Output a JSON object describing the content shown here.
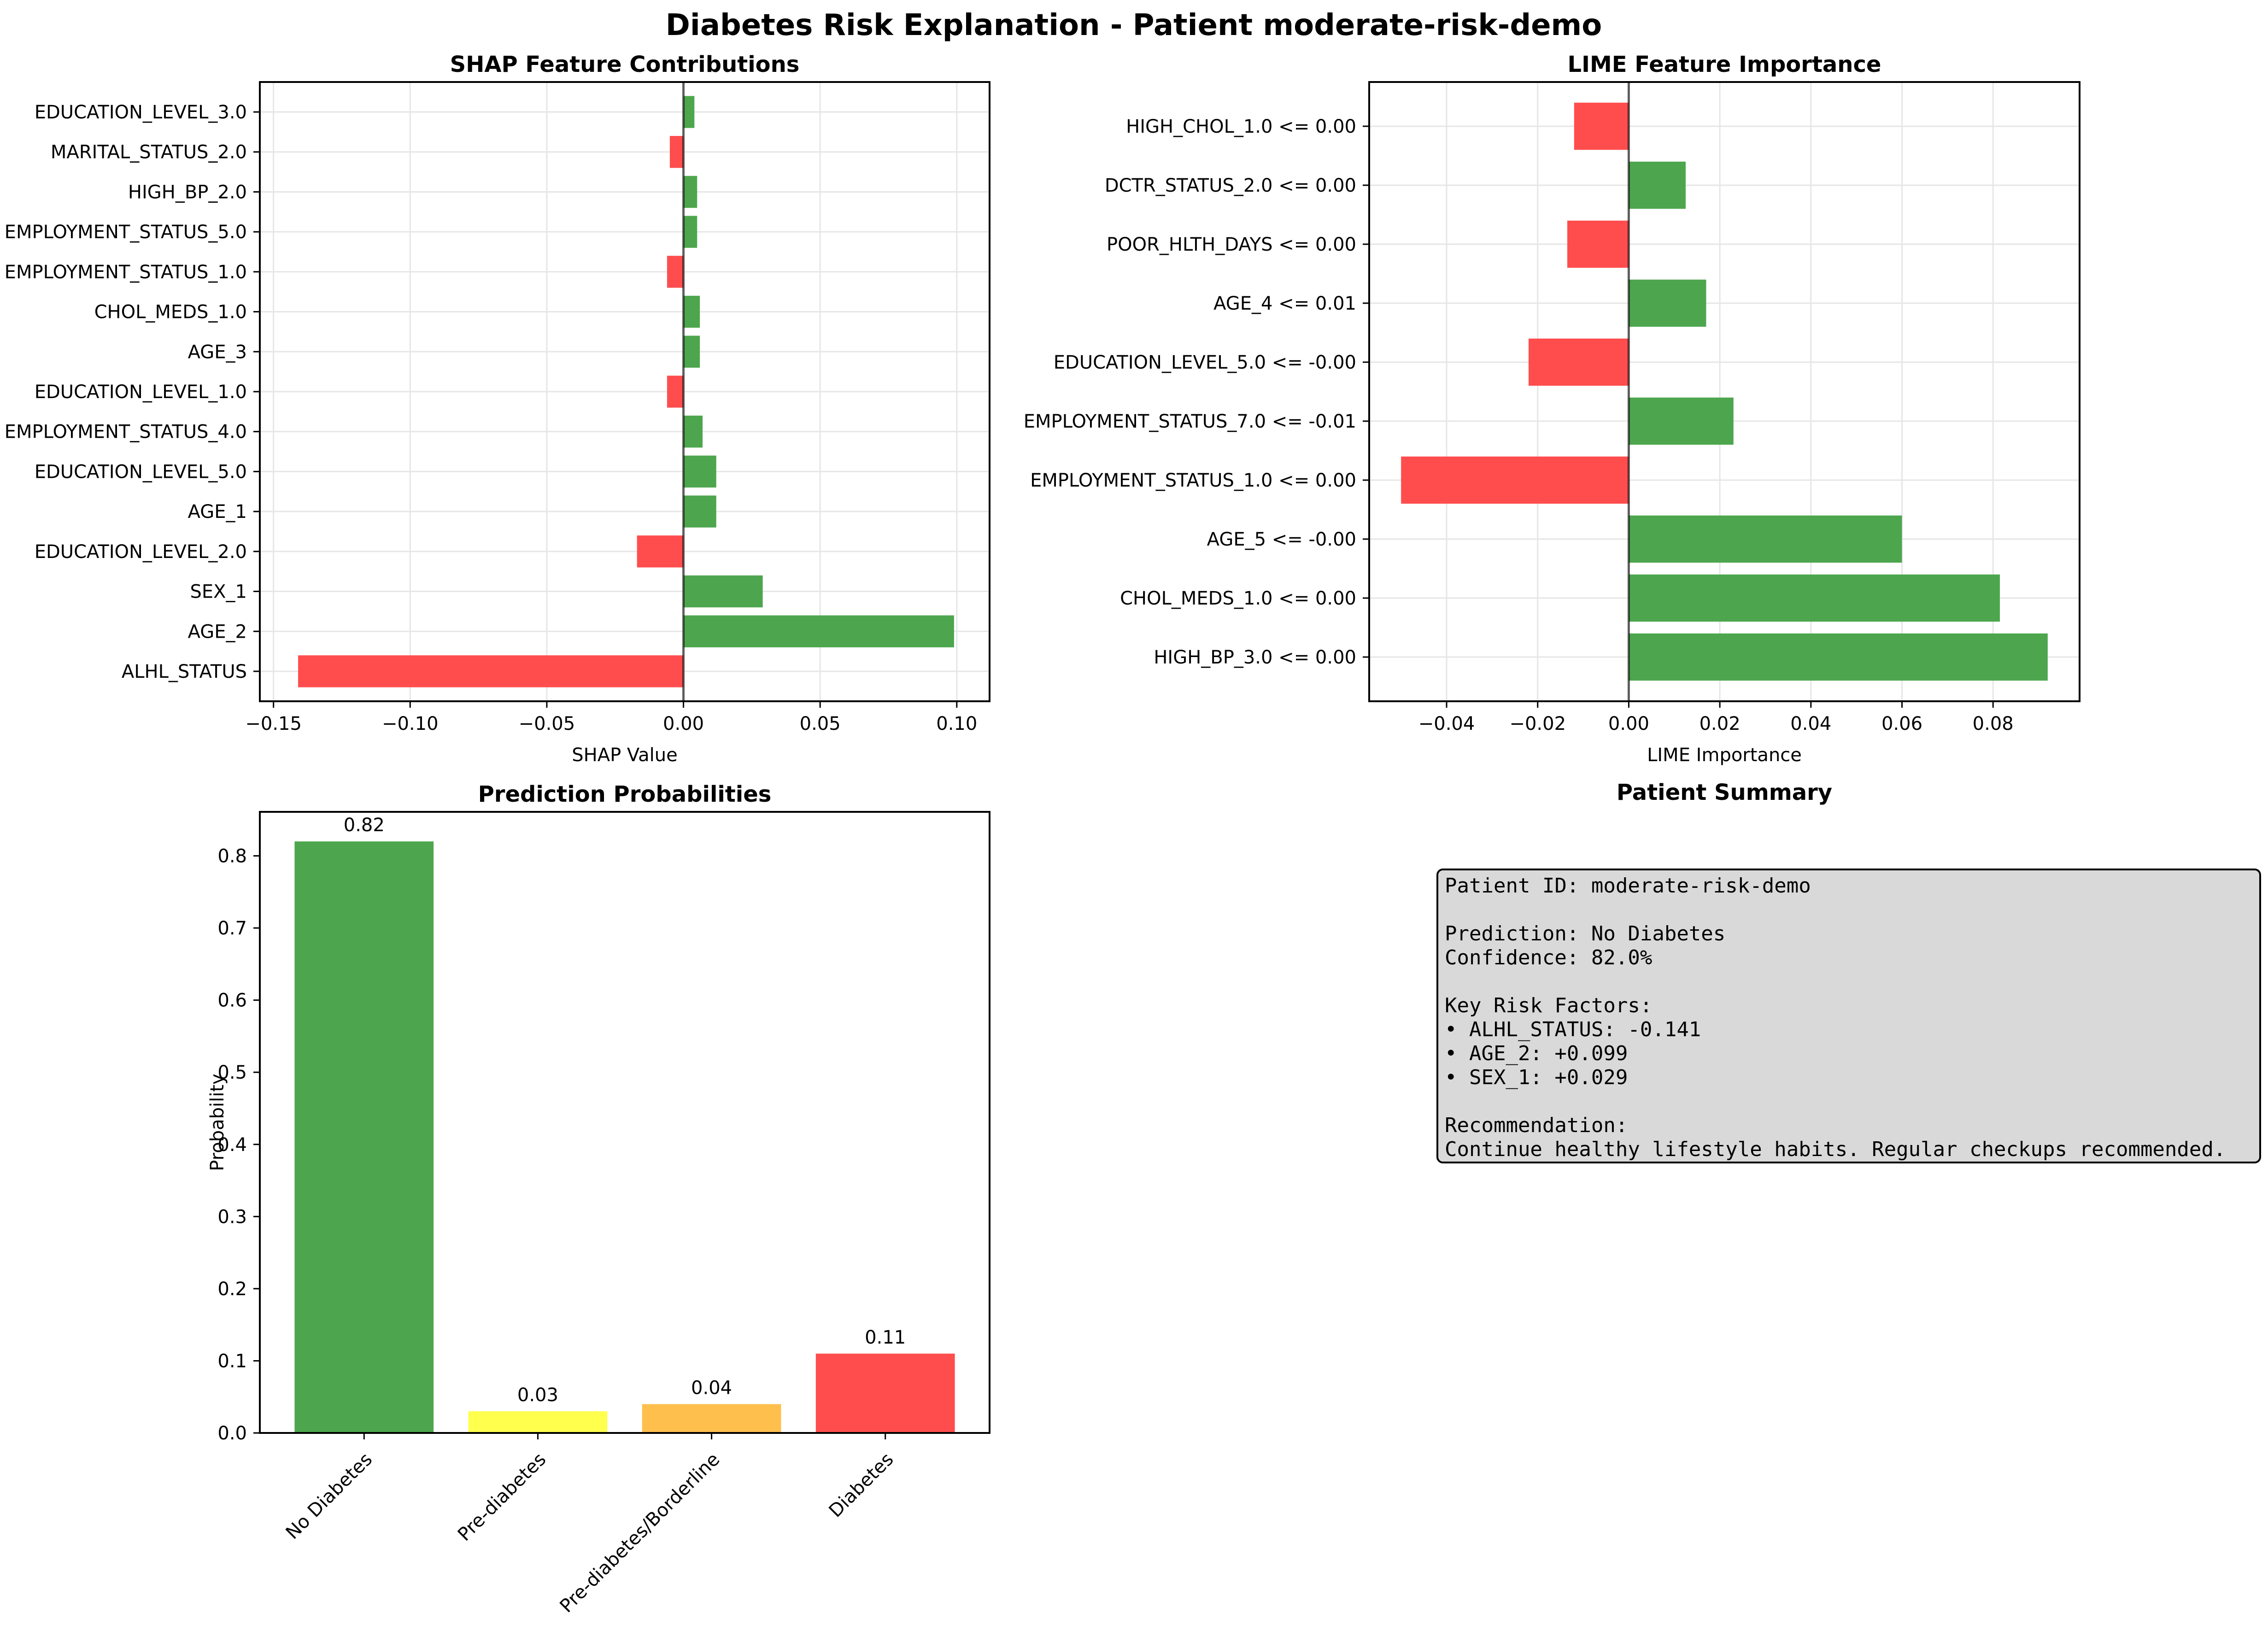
{
  "figure_title": "Diabetes Risk Explanation - Patient moderate-risk-demo",
  "colors": {
    "positive": "#4da64d",
    "negative": "#ff4d4d",
    "bar_colors": [
      "#4da64d",
      "#ffff4d",
      "#ffbf4d",
      "#ff4d4d"
    ],
    "summary_bg": "#d9d9d9"
  },
  "chart_data": [
    {
      "type": "bar",
      "orientation": "horizontal",
      "title": "SHAP Feature Contributions",
      "xlabel": "SHAP Value",
      "ylabel": "",
      "xlim": [
        -0.155,
        0.112
      ],
      "xticks": [
        -0.15,
        -0.1,
        -0.05,
        0.0,
        0.05,
        0.1
      ],
      "xtick_labels": [
        "−0.15",
        "−0.10",
        "−0.05",
        "0.00",
        "0.05",
        "0.10"
      ],
      "grid": true,
      "categories": [
        "ALHL_STATUS",
        "AGE_2",
        "SEX_1",
        "EDUCATION_LEVEL_2.0",
        "AGE_1",
        "EDUCATION_LEVEL_5.0",
        "EMPLOYMENT_STATUS_4.0",
        "EDUCATION_LEVEL_1.0",
        "AGE_3",
        "CHOL_MEDS_1.0",
        "EMPLOYMENT_STATUS_1.0",
        "EMPLOYMENT_STATUS_5.0",
        "HIGH_BP_2.0",
        "MARITAL_STATUS_2.0",
        "EDUCATION_LEVEL_3.0"
      ],
      "values": [
        -0.141,
        0.099,
        0.029,
        -0.017,
        0.012,
        0.012,
        0.007,
        -0.006,
        0.006,
        0.006,
        -0.006,
        0.005,
        0.005,
        -0.005,
        0.004
      ]
    },
    {
      "type": "bar",
      "orientation": "horizontal",
      "title": "LIME Feature Importance",
      "xlabel": "LIME Importance",
      "ylabel": "",
      "xlim": [
        -0.057,
        0.099
      ],
      "xticks": [
        -0.04,
        -0.02,
        0.0,
        0.02,
        0.04,
        0.06,
        0.08
      ],
      "xtick_labels": [
        "−0.04",
        "−0.02",
        "0.00",
        "0.02",
        "0.04",
        "0.06",
        "0.08"
      ],
      "grid": true,
      "categories": [
        "HIGH_BP_3.0 <= 0.00",
        "CHOL_MEDS_1.0 <= 0.00",
        "AGE_5 <= -0.00",
        "EMPLOYMENT_STATUS_1.0 <= 0.00",
        "EMPLOYMENT_STATUS_7.0 <= -0.01",
        "EDUCATION_LEVEL_5.0 <= -0.00",
        "AGE_4 <= 0.01",
        "POOR_HLTH_DAYS <= 0.00",
        "DCTR_STATUS_2.0 <= 0.00",
        "HIGH_CHOL_1.0 <= 0.00"
      ],
      "values": [
        0.092,
        0.0815,
        0.06,
        -0.05,
        0.023,
        -0.022,
        0.017,
        -0.0135,
        0.0125,
        -0.012
      ]
    },
    {
      "type": "bar",
      "title": "Prediction Probabilities",
      "xlabel": "",
      "ylabel": "Probability",
      "ylim": [
        0,
        0.861
      ],
      "yticks": [
        0.0,
        0.1,
        0.2,
        0.3,
        0.4,
        0.5,
        0.6,
        0.7,
        0.8
      ],
      "ytick_labels": [
        "0.0",
        "0.1",
        "0.2",
        "0.3",
        "0.4",
        "0.5",
        "0.6",
        "0.7",
        "0.8"
      ],
      "grid": false,
      "categories": [
        "No Diabetes",
        "Pre-diabetes",
        "Pre-diabetes/Borderline",
        "Diabetes"
      ],
      "values": [
        0.82,
        0.03,
        0.04,
        0.11
      ],
      "data_labels": [
        "0.82",
        "0.03",
        "0.04",
        "0.11"
      ]
    }
  ],
  "summary": {
    "title": "Patient Summary",
    "lines": [
      "Patient ID: moderate-risk-demo",
      "",
      "Prediction: No Diabetes",
      "Confidence: 82.0%",
      "",
      "Key Risk Factors:",
      "• ALHL_STATUS: -0.141",
      "• AGE_2: +0.099",
      "• SEX_1: +0.029",
      "",
      "Recommendation:",
      "Continue healthy lifestyle habits. Regular checkups recommended."
    ]
  }
}
